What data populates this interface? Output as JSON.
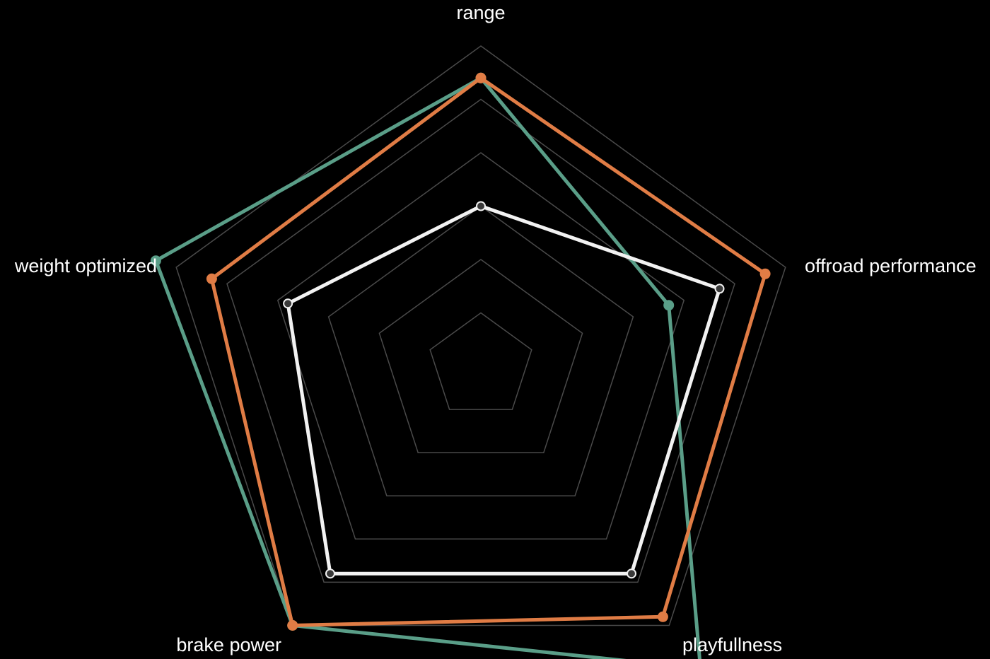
{
  "chart_data": {
    "type": "radar",
    "axes": [
      "range",
      "offroad performance",
      "playfullness",
      "brake power",
      "weight optimized"
    ],
    "rmax": 6,
    "grid_levels": [
      1,
      2,
      3,
      4,
      5,
      6
    ],
    "series": [
      {
        "values": [
          5.4,
          3.7,
          7.0,
          6.0,
          6.4
        ],
        "color": "#5a9e88",
        "point_fill": "#5a9e88",
        "point_stroke": "#5a9e88"
      },
      {
        "values": [
          5.4,
          5.6,
          5.8,
          6.0,
          5.3
        ],
        "color": "#e07c45",
        "point_fill": "#e07c45",
        "point_stroke": "#e07c45"
      },
      {
        "values": [
          3.0,
          4.7,
          4.8,
          4.8,
          3.8
        ],
        "color": "#f2f2f2",
        "point_fill": "#3a3a3a",
        "point_stroke": "#f2f2f2"
      }
    ]
  }
}
